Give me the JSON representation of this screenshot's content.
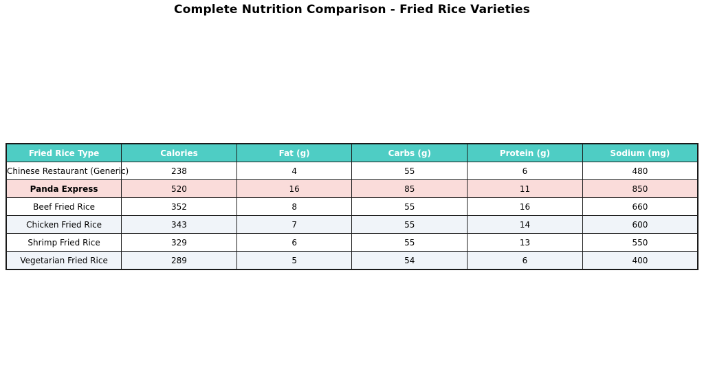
{
  "title": "Complete Nutrition Comparison - Fried Rice Varieties",
  "colors": {
    "header_bg": "#4ECDC4",
    "header_text": "#FFFFFF",
    "highlight_row_bg": "#FADCDA",
    "alt_row_bg": "#F0F4F9",
    "row_bg": "#FFFFFF",
    "border": "#1A1A1A",
    "title_text": "#000000"
  },
  "chart_data": {
    "type": "table",
    "title": "Complete Nutrition Comparison - Fried Rice Varieties",
    "columns": [
      "Fried Rice Type",
      "Calories",
      "Fat (g)",
      "Carbs (g)",
      "Protein (g)",
      "Sodium (mg)"
    ],
    "rows": [
      {
        "label": "Chinese Restaurant (Generic)",
        "values": [
          238,
          4,
          55,
          6,
          480
        ],
        "highlight": false
      },
      {
        "label": "Panda Express",
        "values": [
          520,
          16,
          85,
          11,
          850
        ],
        "highlight": true
      },
      {
        "label": "Beef Fried Rice",
        "values": [
          352,
          8,
          55,
          16,
          660
        ],
        "highlight": false
      },
      {
        "label": "Chicken Fried Rice",
        "values": [
          343,
          7,
          55,
          14,
          600
        ],
        "highlight": false
      },
      {
        "label": "Shrimp Fried Rice",
        "values": [
          329,
          6,
          55,
          13,
          550
        ],
        "highlight": false
      },
      {
        "label": "Vegetarian Fried Rice",
        "values": [
          289,
          5,
          54,
          6,
          400
        ],
        "highlight": false
      }
    ],
    "layout": {
      "legend": "none",
      "grid": "table-borders",
      "highlight_row": "Panda Express",
      "striping": "alternate rows pale blue"
    }
  }
}
